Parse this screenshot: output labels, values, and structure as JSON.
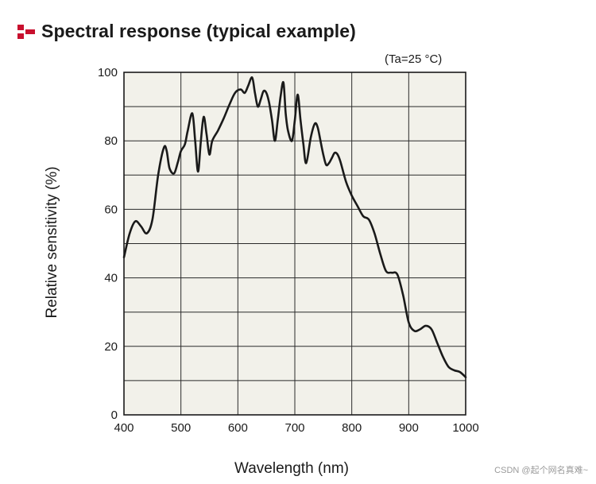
{
  "header": {
    "title": "Spectral response (typical example)",
    "logo_icon": "red-bar-logo-icon",
    "accent_color": "#c8102e"
  },
  "chart_data": {
    "type": "line",
    "title": "Spectral response (typical example)",
    "condition": "(Ta=25 °C)",
    "xlabel": "Wavelength (nm)",
    "ylabel": "Relative sensitivity (%)",
    "xlim": [
      400,
      1000
    ],
    "ylim": [
      0,
      100
    ],
    "xticks": [
      400,
      500,
      600,
      700,
      800,
      900,
      1000
    ],
    "yticks": [
      0,
      20,
      40,
      60,
      80,
      100
    ],
    "grid": true,
    "legend": "none",
    "background_color": "#f2f1ea",
    "series": [
      {
        "color": "#1a1a1a",
        "x": [
          400,
          410,
          420,
          430,
          440,
          450,
          460,
          470,
          475,
          480,
          488,
          495,
          500,
          507,
          512,
          520,
          525,
          530,
          535,
          540,
          545,
          550,
          555,
          565,
          575,
          585,
          595,
          605,
          612,
          618,
          625,
          630,
          635,
          640,
          645,
          650,
          655,
          660,
          665,
          670,
          675,
          680,
          684,
          688,
          695,
          700,
          705,
          710,
          715,
          720,
          728,
          735,
          740,
          745,
          750,
          755,
          760,
          765,
          770,
          775,
          780,
          790,
          800,
          810,
          820,
          830,
          840,
          850,
          860,
          870,
          880,
          890,
          900,
          910,
          920,
          930,
          940,
          950,
          960,
          970,
          980,
          990,
          1000
        ],
        "y": [
          46,
          53,
          56.5,
          55,
          53,
          57,
          70,
          78,
          77,
          72,
          70.5,
          74,
          77,
          79,
          83,
          88,
          80,
          71,
          80,
          87,
          82,
          76,
          80,
          83,
          86.5,
          90.5,
          94,
          95,
          94,
          96,
          98.5,
          94,
          90,
          92,
          94.5,
          94,
          91,
          86,
          80,
          86,
          93,
          97,
          88,
          83,
          80,
          86,
          93.5,
          86,
          79,
          73.5,
          81,
          85,
          84,
          80,
          76,
          73,
          73.5,
          75,
          76.5,
          76,
          74,
          68,
          64,
          61,
          58,
          57,
          53,
          47,
          42,
          41.5,
          41,
          35,
          27,
          24.5,
          25,
          26,
          25,
          21,
          17,
          14,
          13,
          12.5,
          11
        ]
      }
    ]
  },
  "watermark": "CSDN @起个网名真难~"
}
